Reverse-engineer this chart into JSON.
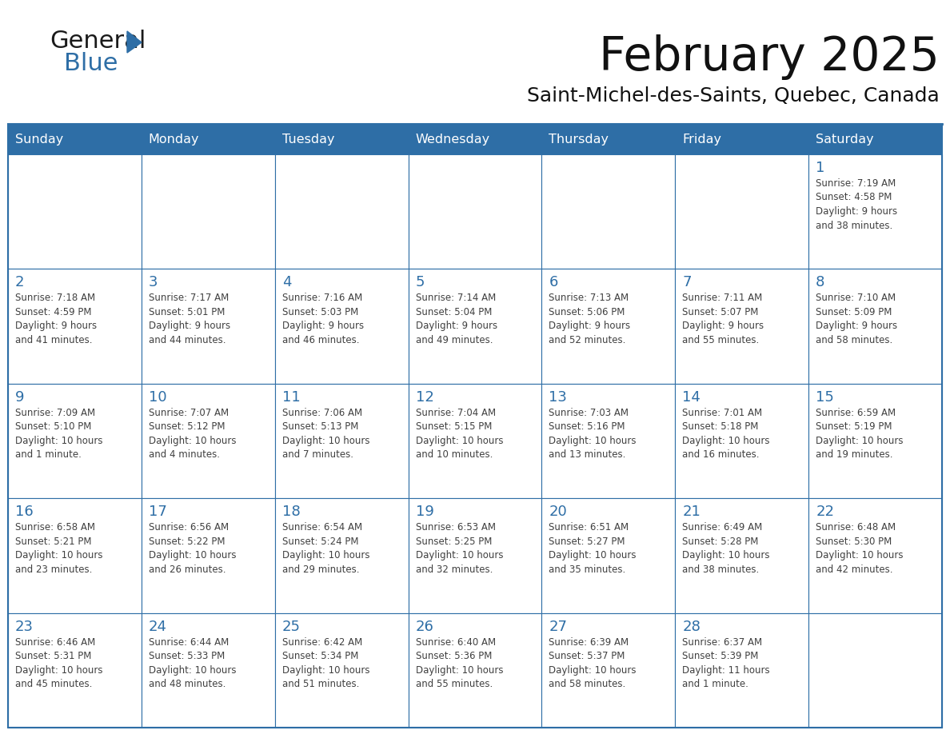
{
  "title": "February 2025",
  "subtitle": "Saint-Michel-des-Saints, Quebec, Canada",
  "days_of_week": [
    "Sunday",
    "Monday",
    "Tuesday",
    "Wednesday",
    "Thursday",
    "Friday",
    "Saturday"
  ],
  "header_bg": "#2E6EA6",
  "header_text": "#FFFFFF",
  "cell_bg": "#FFFFFF",
  "border_color": "#2E6EA6",
  "text_color": "#404040",
  "day_num_color": "#2E6EA6",
  "logo_color_general": "#1a1a1a",
  "logo_color_blue": "#2E6EA6",
  "calendar_data": [
    [
      null,
      null,
      null,
      null,
      null,
      null,
      {
        "day": 1,
        "sunrise": "7:19 AM",
        "sunset": "4:58 PM",
        "daylight": "9 hours\nand 38 minutes."
      }
    ],
    [
      {
        "day": 2,
        "sunrise": "7:18 AM",
        "sunset": "4:59 PM",
        "daylight": "9 hours\nand 41 minutes."
      },
      {
        "day": 3,
        "sunrise": "7:17 AM",
        "sunset": "5:01 PM",
        "daylight": "9 hours\nand 44 minutes."
      },
      {
        "day": 4,
        "sunrise": "7:16 AM",
        "sunset": "5:03 PM",
        "daylight": "9 hours\nand 46 minutes."
      },
      {
        "day": 5,
        "sunrise": "7:14 AM",
        "sunset": "5:04 PM",
        "daylight": "9 hours\nand 49 minutes."
      },
      {
        "day": 6,
        "sunrise": "7:13 AM",
        "sunset": "5:06 PM",
        "daylight": "9 hours\nand 52 minutes."
      },
      {
        "day": 7,
        "sunrise": "7:11 AM",
        "sunset": "5:07 PM",
        "daylight": "9 hours\nand 55 minutes."
      },
      {
        "day": 8,
        "sunrise": "7:10 AM",
        "sunset": "5:09 PM",
        "daylight": "9 hours\nand 58 minutes."
      }
    ],
    [
      {
        "day": 9,
        "sunrise": "7:09 AM",
        "sunset": "5:10 PM",
        "daylight": "10 hours\nand 1 minute."
      },
      {
        "day": 10,
        "sunrise": "7:07 AM",
        "sunset": "5:12 PM",
        "daylight": "10 hours\nand 4 minutes."
      },
      {
        "day": 11,
        "sunrise": "7:06 AM",
        "sunset": "5:13 PM",
        "daylight": "10 hours\nand 7 minutes."
      },
      {
        "day": 12,
        "sunrise": "7:04 AM",
        "sunset": "5:15 PM",
        "daylight": "10 hours\nand 10 minutes."
      },
      {
        "day": 13,
        "sunrise": "7:03 AM",
        "sunset": "5:16 PM",
        "daylight": "10 hours\nand 13 minutes."
      },
      {
        "day": 14,
        "sunrise": "7:01 AM",
        "sunset": "5:18 PM",
        "daylight": "10 hours\nand 16 minutes."
      },
      {
        "day": 15,
        "sunrise": "6:59 AM",
        "sunset": "5:19 PM",
        "daylight": "10 hours\nand 19 minutes."
      }
    ],
    [
      {
        "day": 16,
        "sunrise": "6:58 AM",
        "sunset": "5:21 PM",
        "daylight": "10 hours\nand 23 minutes."
      },
      {
        "day": 17,
        "sunrise": "6:56 AM",
        "sunset": "5:22 PM",
        "daylight": "10 hours\nand 26 minutes."
      },
      {
        "day": 18,
        "sunrise": "6:54 AM",
        "sunset": "5:24 PM",
        "daylight": "10 hours\nand 29 minutes."
      },
      {
        "day": 19,
        "sunrise": "6:53 AM",
        "sunset": "5:25 PM",
        "daylight": "10 hours\nand 32 minutes."
      },
      {
        "day": 20,
        "sunrise": "6:51 AM",
        "sunset": "5:27 PM",
        "daylight": "10 hours\nand 35 minutes."
      },
      {
        "day": 21,
        "sunrise": "6:49 AM",
        "sunset": "5:28 PM",
        "daylight": "10 hours\nand 38 minutes."
      },
      {
        "day": 22,
        "sunrise": "6:48 AM",
        "sunset": "5:30 PM",
        "daylight": "10 hours\nand 42 minutes."
      }
    ],
    [
      {
        "day": 23,
        "sunrise": "6:46 AM",
        "sunset": "5:31 PM",
        "daylight": "10 hours\nand 45 minutes."
      },
      {
        "day": 24,
        "sunrise": "6:44 AM",
        "sunset": "5:33 PM",
        "daylight": "10 hours\nand 48 minutes."
      },
      {
        "day": 25,
        "sunrise": "6:42 AM",
        "sunset": "5:34 PM",
        "daylight": "10 hours\nand 51 minutes."
      },
      {
        "day": 26,
        "sunrise": "6:40 AM",
        "sunset": "5:36 PM",
        "daylight": "10 hours\nand 55 minutes."
      },
      {
        "day": 27,
        "sunrise": "6:39 AM",
        "sunset": "5:37 PM",
        "daylight": "10 hours\nand 58 minutes."
      },
      {
        "day": 28,
        "sunrise": "6:37 AM",
        "sunset": "5:39 PM",
        "daylight": "11 hours\nand 1 minute."
      },
      null
    ]
  ]
}
